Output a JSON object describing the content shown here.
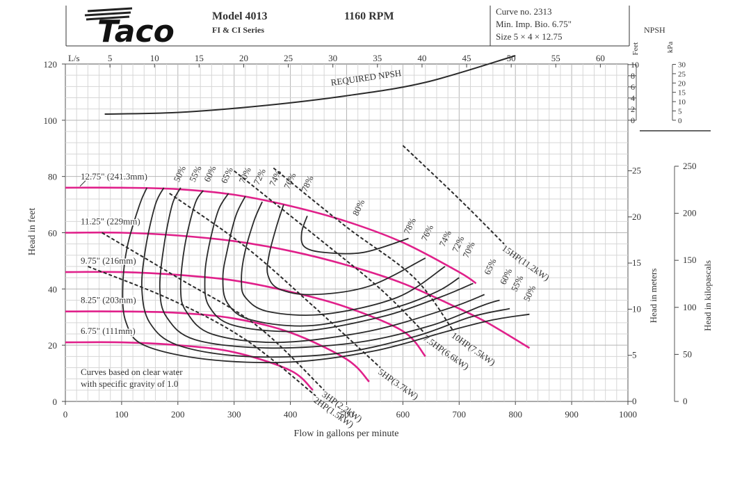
{
  "header": {
    "logo_text": "Taco",
    "model": "Model 4013",
    "series": "FI & CI Series",
    "rpm": "1160 RPM",
    "curve_no": "Curve no. 2313",
    "min_imp": "Min. Imp. Bio. 6.75\"",
    "size": "Size 5 × 4 × 12.75"
  },
  "chart_data": {
    "type": "line",
    "xlabel": "Flow in gallons per minute",
    "ylabel": "Head in feet",
    "ylabel_right_m": "Head in meters",
    "ylabel_right_kpa": "Head in kilopascals",
    "top_axis_label": "L/s",
    "npsh_label": "NPSH",
    "npsh_feet_label": "Feet",
    "npsh_kpa_label": "kPa",
    "xlim": [
      0,
      1000
    ],
    "ylim": [
      0,
      120
    ],
    "grid": true,
    "x_ticks": [
      0,
      100,
      200,
      300,
      400,
      500,
      600,
      700,
      800,
      900,
      1000
    ],
    "y_ticks": [
      0,
      20,
      40,
      60,
      80,
      100,
      120
    ],
    "ls_ticks": [
      5,
      10,
      15,
      20,
      25,
      30,
      35,
      40,
      45,
      50,
      55,
      60
    ],
    "m_ticks": [
      0,
      5,
      10,
      15,
      20,
      25
    ],
    "kpa_ticks": [
      0,
      50,
      100,
      150,
      200,
      250
    ],
    "npsh_ft_ticks": [
      0,
      2,
      4,
      6,
      8,
      10
    ],
    "npsh_kpa_ticks": [
      0,
      5,
      10,
      15,
      20,
      25,
      30
    ],
    "note": [
      "Curves based on clear water",
      "with specific gravity of 1.0"
    ],
    "impellers": [
      {
        "name": "12.75\" (241.3mm)",
        "x": [
          0,
          100,
          200,
          300,
          400,
          500,
          600,
          700,
          730
        ],
        "y": [
          76,
          76,
          75.5,
          73.5,
          69.5,
          64,
          56.5,
          46,
          42
        ]
      },
      {
        "name": "11.25\" (229mm)",
        "x": [
          0,
          100,
          200,
          300,
          400,
          500,
          600,
          700,
          750,
          825
        ],
        "y": [
          60,
          60,
          59,
          57,
          53.5,
          48.5,
          42,
          33,
          28,
          19
        ]
      },
      {
        "name": "9.75\" (216mm)",
        "x": [
          0,
          100,
          200,
          300,
          400,
          500,
          600,
          640
        ],
        "y": [
          46,
          46,
          45,
          43,
          39,
          33.5,
          25,
          16
        ]
      },
      {
        "name": "8.25\" (203mm)",
        "x": [
          0,
          100,
          200,
          300,
          400,
          500,
          540
        ],
        "y": [
          32,
          32,
          31.5,
          29.5,
          24.5,
          15,
          7
        ]
      },
      {
        "name": "6.75\" (111mm)",
        "x": [
          0,
          100,
          200,
          300,
          400,
          440
        ],
        "y": [
          21,
          21,
          20,
          17.5,
          11,
          4
        ]
      }
    ],
    "efficiency_labels": [
      "50%",
      "55%",
      "60%",
      "65%",
      "70%",
      "72%",
      "74%",
      "76%",
      "78%",
      "80%"
    ],
    "efficiency_right_labels": [
      "78%",
      "76%",
      "74%",
      "72%",
      "70%",
      "65%",
      "60%",
      "55%",
      "50%"
    ],
    "efficiency_contours": [
      {
        "name": "50%",
        "x": [
          145,
          132,
          110,
          102,
          108,
          140,
          250,
          400,
          550,
          680,
          760,
          825
        ],
        "y": [
          76,
          70,
          55,
          40,
          28,
          20,
          15,
          14,
          18,
          25,
          29,
          31
        ]
      },
      {
        "name": "55%",
        "x": [
          175,
          160,
          143,
          136,
          150,
          200,
          320,
          480,
          620,
          720,
          790
        ],
        "y": [
          76,
          70,
          55,
          40,
          28,
          20,
          16,
          17,
          23,
          30,
          33
        ]
      },
      {
        "name": "60%",
        "x": [
          205,
          190,
          175,
          168,
          180,
          230,
          360,
          520,
          650,
          740,
          772
        ],
        "y": [
          76,
          70,
          55,
          40,
          30,
          22,
          19,
          21,
          27,
          34,
          36
        ]
      },
      {
        "name": "65%",
        "x": [
          245,
          230,
          212,
          205,
          215,
          260,
          380,
          540,
          680,
          745
        ],
        "y": [
          75,
          70,
          55,
          40,
          32,
          24,
          21,
          25,
          33,
          38
        ]
      },
      {
        "name": "70%",
        "x": [
          290,
          272,
          255,
          248,
          255,
          300,
          420,
          560,
          665,
          725
        ],
        "y": [
          74,
          68,
          55,
          44,
          34,
          27,
          25,
          30,
          37,
          42
        ]
      },
      {
        "name": "72%",
        "x": [
          320,
          303,
          288,
          280,
          288,
          330,
          440,
          580,
          660,
          700
        ],
        "y": [
          73,
          66,
          54,
          44,
          35,
          29,
          27,
          33,
          39,
          44
        ]
      },
      {
        "name": "74%",
        "x": [
          350,
          335,
          318,
          313,
          320,
          360,
          460,
          590,
          675
        ],
        "y": [
          71,
          64,
          52,
          43,
          37,
          32,
          31,
          37,
          48
        ]
      },
      {
        "name": "76%",
        "x": [
          388,
          375,
          362,
          360,
          380,
          440,
          540,
          640
        ],
        "y": [
          70,
          62,
          52,
          45,
          40,
          38,
          41,
          51
        ]
      },
      {
        "name": "78%",
        "x": [
          430,
          420,
          425,
          460,
          530,
          610
        ],
        "y": [
          66,
          60,
          55,
          53,
          53,
          58
        ]
      }
    ],
    "power_lines": [
      {
        "name": "2HP(1.5kW)",
        "x": [
          40,
          190,
          320,
          445
        ],
        "y": [
          48,
          36,
          22,
          2
        ]
      },
      {
        "name": "3HP(2.2kW)",
        "x": [
          65,
          200,
          340,
          460
        ],
        "y": [
          60,
          44,
          27,
          4
        ]
      },
      {
        "name": "5HP(3.7kW)",
        "x": [
          185,
          320,
          440,
          560
        ],
        "y": [
          74,
          55,
          34,
          12
        ]
      },
      {
        "name": "7.5HP(6.6kW)",
        "x": [
          300,
          450,
          560,
          640
        ],
        "y": [
          82,
          58,
          40,
          24
        ]
      },
      {
        "name": "10HP(7.5kW)",
        "x": [
          370,
          500,
          620,
          690
        ],
        "y": [
          83,
          62,
          44,
          25
        ]
      },
      {
        "name": "15HP(11.2kW)",
        "x": [
          600,
          700,
          780
        ],
        "y": [
          91,
          72,
          56
        ]
      }
    ],
    "required_npsh": {
      "name": "REQUIRED NPSH",
      "x": [
        70,
        200,
        350,
        500,
        640,
        800
      ],
      "y": [
        1.1,
        1.4,
        2.6,
        4.4,
        6.8,
        11.6
      ]
    }
  }
}
